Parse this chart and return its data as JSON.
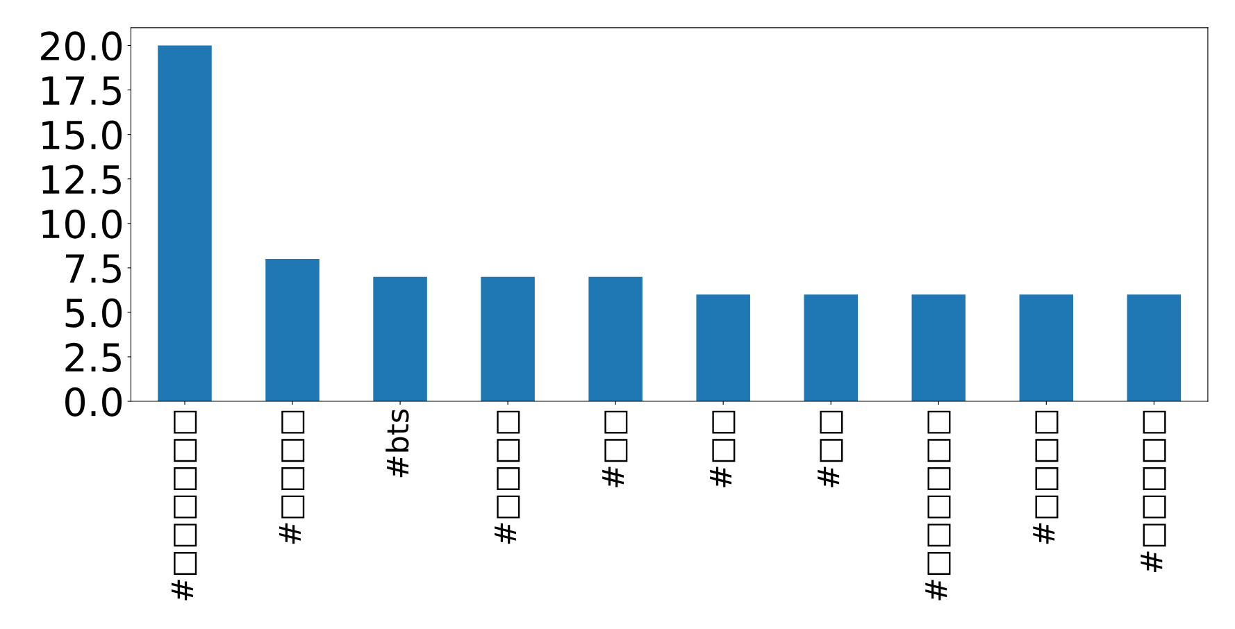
{
  "chart_data": {
    "type": "bar",
    "categories": [
      "#□□□□□□",
      "#□□□□",
      "#bts",
      "#□□□□",
      "#□□",
      "#□□",
      "#□□",
      "#□□□□□□",
      "#□□□□",
      "#□□□□□"
    ],
    "values": [
      20,
      8,
      7,
      7,
      7,
      6,
      6,
      6,
      6,
      6
    ],
    "color": "#1f77b4",
    "ylim": [
      0,
      21
    ],
    "yticks": [
      {
        "value": 0,
        "label": "0.0"
      },
      {
        "value": 2.5,
        "label": "2.5"
      },
      {
        "value": 5,
        "label": "5.0"
      },
      {
        "value": 7.5,
        "label": "7.5"
      },
      {
        "value": 10,
        "label": "10.0"
      },
      {
        "value": 12.5,
        "label": "12.5"
      },
      {
        "value": 15,
        "label": "15.0"
      },
      {
        "value": 17.5,
        "label": "17.5"
      },
      {
        "value": 20,
        "label": "20.0"
      }
    ],
    "grid": false
  }
}
